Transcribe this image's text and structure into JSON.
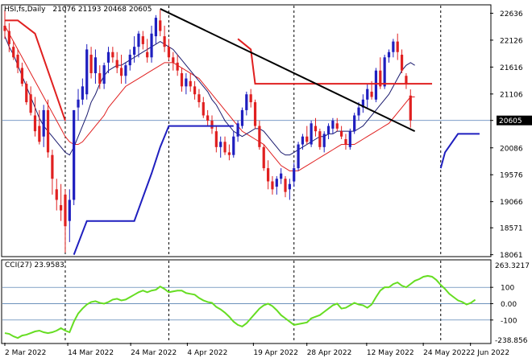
{
  "chart_data": [
    {
      "type": "candlestick",
      "panel": "price",
      "symbol_label": "HSI,fs,Daily",
      "ohlc_label": "21076 21193 20468 20605",
      "last_price": 20605,
      "yticks": [
        22636,
        22126,
        21616,
        21106,
        20605,
        20086,
        19576,
        19066,
        18571,
        18061
      ],
      "ylim": [
        18040,
        22780
      ],
      "xticks": [
        "2 Mar 2022",
        "14 Mar 2022",
        "24 Mar 2022",
        "4 Apr 2022",
        "19 Apr 2022",
        "28 Apr 2022",
        "12 May 2022",
        "24 May 2022",
        "2 Jun 2022"
      ],
      "colors": {
        "up": "#1f1fbf",
        "down": "#e02020",
        "ma_fast": "#1a1a6e",
        "ma_slow": "#e02020",
        "trendline": "#000000",
        "resistance": "#e02020",
        "support": "#1f1fbf"
      },
      "candles": [
        [
          22400,
          22700,
          22150,
          22300
        ],
        [
          22300,
          22450,
          21900,
          22050
        ],
        [
          22000,
          22100,
          21750,
          21800
        ],
        [
          21850,
          21950,
          21500,
          21600
        ],
        [
          21600,
          21700,
          21250,
          21300
        ],
        [
          21300,
          21350,
          20900,
          20950
        ],
        [
          21100,
          21250,
          20700,
          20750
        ],
        [
          20700,
          21050,
          20300,
          20400
        ],
        [
          20500,
          20800,
          20150,
          20200
        ],
        [
          20300,
          20900,
          20100,
          20800
        ],
        [
          20800,
          21000,
          19900,
          20000
        ],
        [
          19950,
          20050,
          19200,
          19500
        ],
        [
          19300,
          19500,
          18900,
          19100
        ],
        [
          19000,
          19400,
          18700,
          18900
        ],
        [
          19200,
          19300,
          18100,
          18600
        ],
        [
          18700,
          19300,
          18300,
          19100
        ],
        [
          19100,
          20800,
          19000,
          20800
        ],
        [
          20850,
          21200,
          20600,
          21000
        ],
        [
          21000,
          21400,
          20900,
          21250
        ],
        [
          21100,
          22050,
          21000,
          21950
        ],
        [
          21850,
          22000,
          21400,
          21500
        ],
        [
          21500,
          21950,
          21300,
          21800
        ],
        [
          21500,
          21650,
          21200,
          21300
        ],
        [
          21300,
          21700,
          21200,
          21650
        ],
        [
          21700,
          22000,
          21500,
          21900
        ],
        [
          21900,
          22000,
          21700,
          21800
        ],
        [
          21750,
          21900,
          21500,
          21600
        ],
        [
          21600,
          21850,
          21300,
          21450
        ],
        [
          21450,
          21700,
          21300,
          21650
        ],
        [
          21650,
          21950,
          21550,
          21850
        ],
        [
          21850,
          22200,
          21700,
          22000
        ],
        [
          22000,
          22300,
          21800,
          22250
        ],
        [
          22200,
          22300,
          21950,
          22050
        ],
        [
          21900,
          22150,
          21700,
          21800
        ],
        [
          21800,
          22400,
          21700,
          22250
        ],
        [
          22200,
          22600,
          22050,
          22550
        ],
        [
          22500,
          22700,
          22200,
          22300
        ],
        [
          22200,
          22400,
          21900,
          22000
        ],
        [
          22000,
          22150,
          21750,
          21800
        ],
        [
          21800,
          21900,
          21550,
          21700
        ],
        [
          21700,
          21850,
          21450,
          21550
        ],
        [
          21500,
          21600,
          21150,
          21250
        ],
        [
          21250,
          21500,
          21100,
          21400
        ],
        [
          21350,
          21500,
          21150,
          21250
        ],
        [
          21250,
          21350,
          21000,
          21100
        ],
        [
          21100,
          21200,
          20850,
          20950
        ],
        [
          20950,
          21050,
          20650,
          20700
        ],
        [
          20700,
          20800,
          20500,
          20600
        ],
        [
          20600,
          20700,
          20350,
          20450
        ],
        [
          20400,
          20500,
          20000,
          20100
        ],
        [
          20100,
          20300,
          19900,
          20200
        ],
        [
          20200,
          20300,
          19950,
          20000
        ],
        [
          20000,
          20150,
          19850,
          19950
        ],
        [
          19950,
          20400,
          19900,
          20300
        ],
        [
          20300,
          20600,
          20200,
          20550
        ],
        [
          20500,
          20850,
          20450,
          20800
        ],
        [
          20800,
          21150,
          20700,
          21100
        ],
        [
          21100,
          21200,
          20850,
          20950
        ],
        [
          20950,
          21000,
          20450,
          20500
        ],
        [
          20500,
          20600,
          20050,
          20100
        ],
        [
          20100,
          20150,
          19650,
          19700
        ],
        [
          19700,
          19850,
          19300,
          19450
        ],
        [
          19450,
          19550,
          19200,
          19300
        ],
        [
          19350,
          19550,
          19200,
          19500
        ],
        [
          19500,
          19700,
          19400,
          19600
        ],
        [
          19500,
          19550,
          19150,
          19250
        ],
        [
          19300,
          19500,
          19100,
          19400
        ],
        [
          19450,
          19800,
          19350,
          19700
        ],
        [
          19700,
          20200,
          19650,
          20150
        ],
        [
          20150,
          20350,
          20050,
          20300
        ],
        [
          20300,
          20500,
          20150,
          20200
        ],
        [
          20150,
          20600,
          20100,
          20550
        ],
        [
          20500,
          20650,
          20300,
          20400
        ],
        [
          20400,
          20450,
          20050,
          20100
        ],
        [
          20100,
          20400,
          20000,
          20350
        ],
        [
          20350,
          20550,
          20250,
          20500
        ],
        [
          20450,
          20650,
          20350,
          20600
        ],
        [
          20550,
          20650,
          20400,
          20450
        ],
        [
          20400,
          20500,
          20250,
          20300
        ],
        [
          20250,
          20350,
          20050,
          20150
        ],
        [
          20100,
          20450,
          20050,
          20400
        ],
        [
          20400,
          20750,
          20350,
          20700
        ],
        [
          20700,
          20950,
          20600,
          20850
        ],
        [
          20850,
          21100,
          20750,
          21000
        ],
        [
          21000,
          21300,
          20850,
          21200
        ],
        [
          21150,
          21350,
          21000,
          21050
        ],
        [
          21000,
          21600,
          20950,
          21550
        ],
        [
          21550,
          21800,
          21200,
          21250
        ],
        [
          21250,
          21850,
          21200,
          21800
        ],
        [
          21800,
          21950,
          21700,
          21900
        ],
        [
          21900,
          22150,
          21800,
          22100
        ],
        [
          22100,
          22250,
          21750,
          21900
        ],
        [
          21850,
          21950,
          21500,
          21550
        ],
        [
          21450,
          21500,
          21200,
          21300
        ],
        [
          21076,
          21193,
          20468,
          20605
        ]
      ],
      "ma_fast_values": [
        22200,
        22000,
        21850,
        21650,
        21450,
        21250,
        21050,
        20850,
        20650,
        20500,
        20400,
        20300,
        20200,
        20100,
        20000,
        19950,
        20100,
        20300,
        20500,
        20700,
        20950,
        21100,
        21300,
        21450,
        21550,
        21600,
        21650,
        21650,
        21700,
        21750,
        21800,
        21850,
        21900,
        21950,
        22000,
        22050,
        22100,
        22050,
        22000,
        21950,
        21850,
        21750,
        21650,
        21550,
        21450,
        21350,
        21250,
        21150,
        21000,
        20900,
        20750,
        20600,
        20500,
        20400,
        20350,
        20300,
        20350,
        20400,
        20450,
        20450,
        20400,
        20300,
        20200,
        20100,
        20000,
        19950,
        19950,
        20000,
        20050,
        20100,
        20150,
        20200,
        20250,
        20300,
        20300,
        20350,
        20350,
        20400,
        20400,
        20400,
        20400,
        20400,
        20450,
        20500,
        20600,
        20700,
        20800,
        20900,
        21000,
        21100,
        21250,
        21400,
        21550,
        21650,
        21700,
        21650
      ],
      "ma_slow_values": [
        22400,
        22250,
        22100,
        21950,
        21800,
        21650,
        21500,
        21350,
        21200,
        21050,
        20900,
        20750,
        20600,
        20450,
        20300,
        20200,
        20150,
        20150,
        20200,
        20300,
        20400,
        20500,
        20600,
        20700,
        20850,
        20950,
        21050,
        21150,
        21250,
        21300,
        21350,
        21400,
        21450,
        21500,
        21550,
        21600,
        21650,
        21700,
        21700,
        21700,
        21650,
        21600,
        21550,
        21500,
        21450,
        21400,
        21300,
        21200,
        21100,
        21000,
        20900,
        20800,
        20700,
        20600,
        20500,
        20400,
        20350,
        20300,
        20250,
        20200,
        20150,
        20050,
        19950,
        19850,
        19750,
        19700,
        19650,
        19650,
        19650,
        19700,
        19750,
        19800,
        19850,
        19900,
        19950,
        20000,
        20050,
        20100,
        20150,
        20150,
        20150,
        20150,
        20200,
        20250,
        20300,
        20350,
        20400,
        20450,
        20500,
        20550,
        20650,
        20750,
        20850,
        20950,
        21050,
        21050
      ],
      "trendline": {
        "from": [
          36,
          22720
        ],
        "to": [
          95,
          20400
        ]
      },
      "resistance_segments": [
        [
          [
            0,
            22500
          ],
          [
            3,
            22500
          ],
          [
            7,
            22250
          ],
          [
            14,
            20600
          ]
        ],
        [
          [
            54,
            22150
          ],
          [
            57,
            21950
          ],
          [
            58,
            21300
          ],
          [
            99,
            21300
          ]
        ]
      ],
      "support_segments": [
        [
          [
            16,
            18061
          ],
          [
            19,
            18700
          ],
          [
            30,
            18700
          ],
          [
            34,
            19600
          ],
          [
            36,
            20100
          ],
          [
            38,
            20500
          ],
          [
            53,
            20500
          ]
        ],
        [
          [
            101,
            19700
          ],
          [
            102,
            20000
          ],
          [
            105,
            20350
          ],
          [
            110,
            20350
          ]
        ]
      ],
      "vlines": [
        14,
        38,
        67,
        101
      ]
    },
    {
      "type": "line",
      "panel": "indicator",
      "label": "CCI(27) 23.9583",
      "ytick_labels": [
        "100",
        "0.00",
        "-100"
      ],
      "ytick_values": [
        100,
        0,
        -100
      ],
      "top_value_label": "263.3217",
      "bottom_value_label": "-238.856",
      "ylim": [
        -238.856,
        263.3217
      ],
      "color": "#66dd22",
      "values": [
        -180,
        -185,
        -200,
        -210,
        -195,
        -190,
        -180,
        -170,
        -165,
        -175,
        -180,
        -175,
        -165,
        -150,
        -165,
        -175,
        -110,
        -60,
        -30,
        -5,
        10,
        15,
        5,
        0,
        10,
        25,
        30,
        20,
        25,
        40,
        55,
        70,
        80,
        70,
        80,
        85,
        105,
        90,
        70,
        75,
        80,
        80,
        65,
        60,
        55,
        35,
        20,
        10,
        5,
        -20,
        -35,
        -55,
        -80,
        -110,
        -130,
        -140,
        -120,
        -90,
        -60,
        -30,
        -10,
        0,
        -15,
        -40,
        -70,
        -90,
        -110,
        -130,
        -125,
        -120,
        -115,
        -90,
        -80,
        -70,
        -50,
        -30,
        -10,
        0,
        -30,
        -25,
        -10,
        5,
        -5,
        -10,
        -25,
        -5,
        40,
        80,
        100,
        100,
        120,
        130,
        110,
        100,
        120,
        140,
        150,
        165,
        170,
        165,
        145,
        115,
        90,
        60,
        40,
        20,
        10,
        -5,
        5,
        24
      ]
    }
  ]
}
